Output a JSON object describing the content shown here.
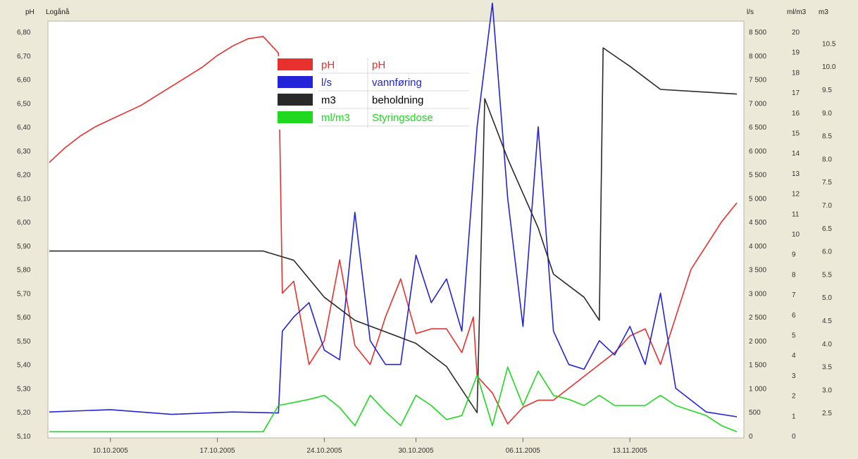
{
  "header": {
    "left_labels": [
      "pH",
      "Logånå"
    ],
    "right_labels": [
      "l/s",
      "ml/m3",
      "m3"
    ]
  },
  "colors": {
    "background": "#ECE9D8",
    "plot": "#FFFFFF",
    "ph": "#E8302E",
    "flow": "#2323D8",
    "stock": "#2A2A2A",
    "dose": "#20D820"
  },
  "chart_data": {
    "type": "line",
    "grid": false,
    "legend_position": "top-center",
    "x_dates": [
      "10.10.2005",
      "17.10.2005",
      "24.10.2005",
      "30.10.2005",
      "06.11.2005",
      "13.11.2005"
    ],
    "x_range": [
      "2005-10-06",
      "2005-11-20"
    ],
    "axes": {
      "ph": {
        "range": [
          5.1,
          6.8
        ],
        "ticks": [
          "6,80",
          "6,70",
          "6,60",
          "6,50",
          "6,40",
          "6,30",
          "6,20",
          "6,10",
          "6,00",
          "5,90",
          "5,80",
          "5,70",
          "5,60",
          "5,50",
          "5,40",
          "5,30",
          "5,20",
          "5,10"
        ]
      },
      "flow": {
        "unit": "l/s",
        "range": [
          0,
          8500
        ],
        "ticks": [
          "8 500",
          "8 000",
          "7 500",
          "7 000",
          "6 500",
          "6 000",
          "5 500",
          "5 000",
          "4 500",
          "4 000",
          "3 500",
          "3 000",
          "2 500",
          "2 000",
          "1 500",
          "1 000",
          "500",
          "0"
        ]
      },
      "dose": {
        "unit": "ml/m3",
        "range": [
          0,
          20
        ],
        "ticks": [
          "20",
          "19",
          "18",
          "17",
          "16",
          "15",
          "14",
          "13",
          "12",
          "11",
          "10",
          "9",
          "8",
          "7",
          "6",
          "5",
          "4",
          "3",
          "2",
          "1",
          "0"
        ]
      },
      "stock": {
        "unit": "m3",
        "range": [
          2.0,
          10.75
        ],
        "ticks": [
          "10.5",
          "10.0",
          "9.5",
          "9.0",
          "8.5",
          "8.0",
          "7.5",
          "7.0",
          "6.5",
          "6.0",
          "5.5",
          "5.0",
          "4.5",
          "4.0",
          "3.5",
          "3.0",
          "2.5"
        ]
      }
    },
    "legend": [
      {
        "swatch": "ph",
        "unit": "pH",
        "label": "pH"
      },
      {
        "swatch": "flow",
        "unit": "l/s",
        "label": "vannføring"
      },
      {
        "swatch": "stock",
        "unit": "m3",
        "label": "beholdning"
      },
      {
        "swatch": "dose",
        "unit": "ml/m3",
        "label": "Styringsdose"
      }
    ],
    "series": [
      {
        "key": "ph",
        "axis": "ph",
        "points": [
          [
            "2005-10-06",
            6.25
          ],
          [
            "2005-10-07",
            6.31
          ],
          [
            "2005-10-08",
            6.36
          ],
          [
            "2005-10-09",
            6.4
          ],
          [
            "2005-10-10",
            6.43
          ],
          [
            "2005-10-11",
            6.46
          ],
          [
            "2005-10-12",
            6.49
          ],
          [
            "2005-10-13",
            6.53
          ],
          [
            "2005-10-14",
            6.57
          ],
          [
            "2005-10-15",
            6.61
          ],
          [
            "2005-10-16",
            6.65
          ],
          [
            "2005-10-17",
            6.7
          ],
          [
            "2005-10-18",
            6.74
          ],
          [
            "2005-10-19",
            6.77
          ],
          [
            "2005-10-20",
            6.78
          ],
          [
            "2005-10-21",
            6.71
          ],
          [
            "2005-10-21 06:00",
            5.7
          ],
          [
            "2005-10-22",
            5.75
          ],
          [
            "2005-10-23",
            5.4
          ],
          [
            "2005-10-24",
            5.5
          ],
          [
            "2005-10-25",
            5.84
          ],
          [
            "2005-10-26",
            5.48
          ],
          [
            "2005-10-27",
            5.4
          ],
          [
            "2005-10-28",
            5.6
          ],
          [
            "2005-10-29",
            5.76
          ],
          [
            "2005-10-30",
            5.53
          ],
          [
            "2005-10-31",
            5.55
          ],
          [
            "2005-11-01",
            5.55
          ],
          [
            "2005-11-02",
            5.45
          ],
          [
            "2005-11-02 18:00",
            5.6
          ],
          [
            "2005-11-03",
            5.35
          ],
          [
            "2005-11-04",
            5.28
          ],
          [
            "2005-11-05",
            5.15
          ],
          [
            "2005-11-06",
            5.22
          ],
          [
            "2005-11-07",
            5.25
          ],
          [
            "2005-11-08",
            5.25
          ],
          [
            "2005-11-09",
            5.3
          ],
          [
            "2005-11-10",
            5.35
          ],
          [
            "2005-11-11",
            5.4
          ],
          [
            "2005-11-12",
            5.45
          ],
          [
            "2005-11-13",
            5.52
          ],
          [
            "2005-11-14",
            5.55
          ],
          [
            "2005-11-15",
            5.4
          ],
          [
            "2005-11-16",
            5.6
          ],
          [
            "2005-11-17",
            5.8
          ],
          [
            "2005-11-18",
            5.9
          ],
          [
            "2005-11-19",
            6.0
          ],
          [
            "2005-11-20",
            6.08
          ]
        ]
      },
      {
        "key": "flow",
        "axis": "flow",
        "points": [
          [
            "2005-10-06",
            500
          ],
          [
            "2005-10-10",
            550
          ],
          [
            "2005-10-14",
            450
          ],
          [
            "2005-10-18",
            500
          ],
          [
            "2005-10-21",
            480
          ],
          [
            "2005-10-21 06:00",
            2200
          ],
          [
            "2005-10-22",
            2500
          ],
          [
            "2005-10-23",
            2800
          ],
          [
            "2005-10-24",
            1800
          ],
          [
            "2005-10-25",
            1600
          ],
          [
            "2005-10-26",
            4700
          ],
          [
            "2005-10-27",
            2000
          ],
          [
            "2005-10-28",
            1500
          ],
          [
            "2005-10-29",
            1500
          ],
          [
            "2005-10-30",
            3800
          ],
          [
            "2005-10-31",
            2800
          ],
          [
            "2005-11-01",
            3300
          ],
          [
            "2005-11-02",
            2200
          ],
          [
            "2005-11-03",
            6500
          ],
          [
            "2005-11-04",
            9100
          ],
          [
            "2005-11-05",
            5000
          ],
          [
            "2005-11-06",
            2300
          ],
          [
            "2005-11-07",
            6500
          ],
          [
            "2005-11-08",
            2200
          ],
          [
            "2005-11-09",
            1500
          ],
          [
            "2005-11-10",
            1400
          ],
          [
            "2005-11-11",
            2000
          ],
          [
            "2005-11-12",
            1700
          ],
          [
            "2005-11-13",
            2300
          ],
          [
            "2005-11-14",
            1500
          ],
          [
            "2005-11-15",
            3000
          ],
          [
            "2005-11-16",
            1000
          ],
          [
            "2005-11-18",
            500
          ],
          [
            "2005-11-20",
            400
          ]
        ]
      },
      {
        "key": "stock",
        "axis": "stock",
        "points": [
          [
            "2005-10-06",
            6.0
          ],
          [
            "2005-10-20",
            6.0
          ],
          [
            "2005-10-22",
            5.8
          ],
          [
            "2005-10-24",
            5.0
          ],
          [
            "2005-10-26",
            4.5
          ],
          [
            "2005-10-30",
            4.0
          ],
          [
            "2005-11-01",
            3.5
          ],
          [
            "2005-11-03",
            2.5
          ],
          [
            "2005-11-03 12:00",
            9.3
          ],
          [
            "2005-11-05",
            8.0
          ],
          [
            "2005-11-07",
            6.5
          ],
          [
            "2005-11-08",
            5.5
          ],
          [
            "2005-11-10",
            5.0
          ],
          [
            "2005-11-11",
            4.5
          ],
          [
            "2005-11-11 06:00",
            10.4
          ],
          [
            "2005-11-13",
            10.0
          ],
          [
            "2005-11-15",
            9.5
          ],
          [
            "2005-11-20",
            9.4
          ]
        ]
      },
      {
        "key": "dose",
        "axis": "dose",
        "points": [
          [
            "2005-10-06",
            0.2
          ],
          [
            "2005-10-20",
            0.2
          ],
          [
            "2005-10-21",
            1.5
          ],
          [
            "2005-10-23",
            1.8
          ],
          [
            "2005-10-24",
            2.0
          ],
          [
            "2005-10-25",
            1.4
          ],
          [
            "2005-10-26",
            0.5
          ],
          [
            "2005-10-27",
            2.0
          ],
          [
            "2005-10-28",
            1.2
          ],
          [
            "2005-10-29",
            0.5
          ],
          [
            "2005-10-30",
            2.0
          ],
          [
            "2005-10-31",
            1.5
          ],
          [
            "2005-11-01",
            0.8
          ],
          [
            "2005-11-02",
            1.0
          ],
          [
            "2005-11-03",
            3.0
          ],
          [
            "2005-11-04",
            0.5
          ],
          [
            "2005-11-05",
            3.4
          ],
          [
            "2005-11-06",
            1.5
          ],
          [
            "2005-11-07",
            3.2
          ],
          [
            "2005-11-08",
            2.0
          ],
          [
            "2005-11-09",
            1.8
          ],
          [
            "2005-11-10",
            1.5
          ],
          [
            "2005-11-11",
            2.0
          ],
          [
            "2005-11-12",
            1.5
          ],
          [
            "2005-11-13",
            1.5
          ],
          [
            "2005-11-14",
            1.5
          ],
          [
            "2005-11-15",
            2.0
          ],
          [
            "2005-11-16",
            1.5
          ],
          [
            "2005-11-18",
            1.0
          ],
          [
            "2005-11-19",
            0.5
          ],
          [
            "2005-11-20",
            0.2
          ]
        ]
      }
    ]
  }
}
